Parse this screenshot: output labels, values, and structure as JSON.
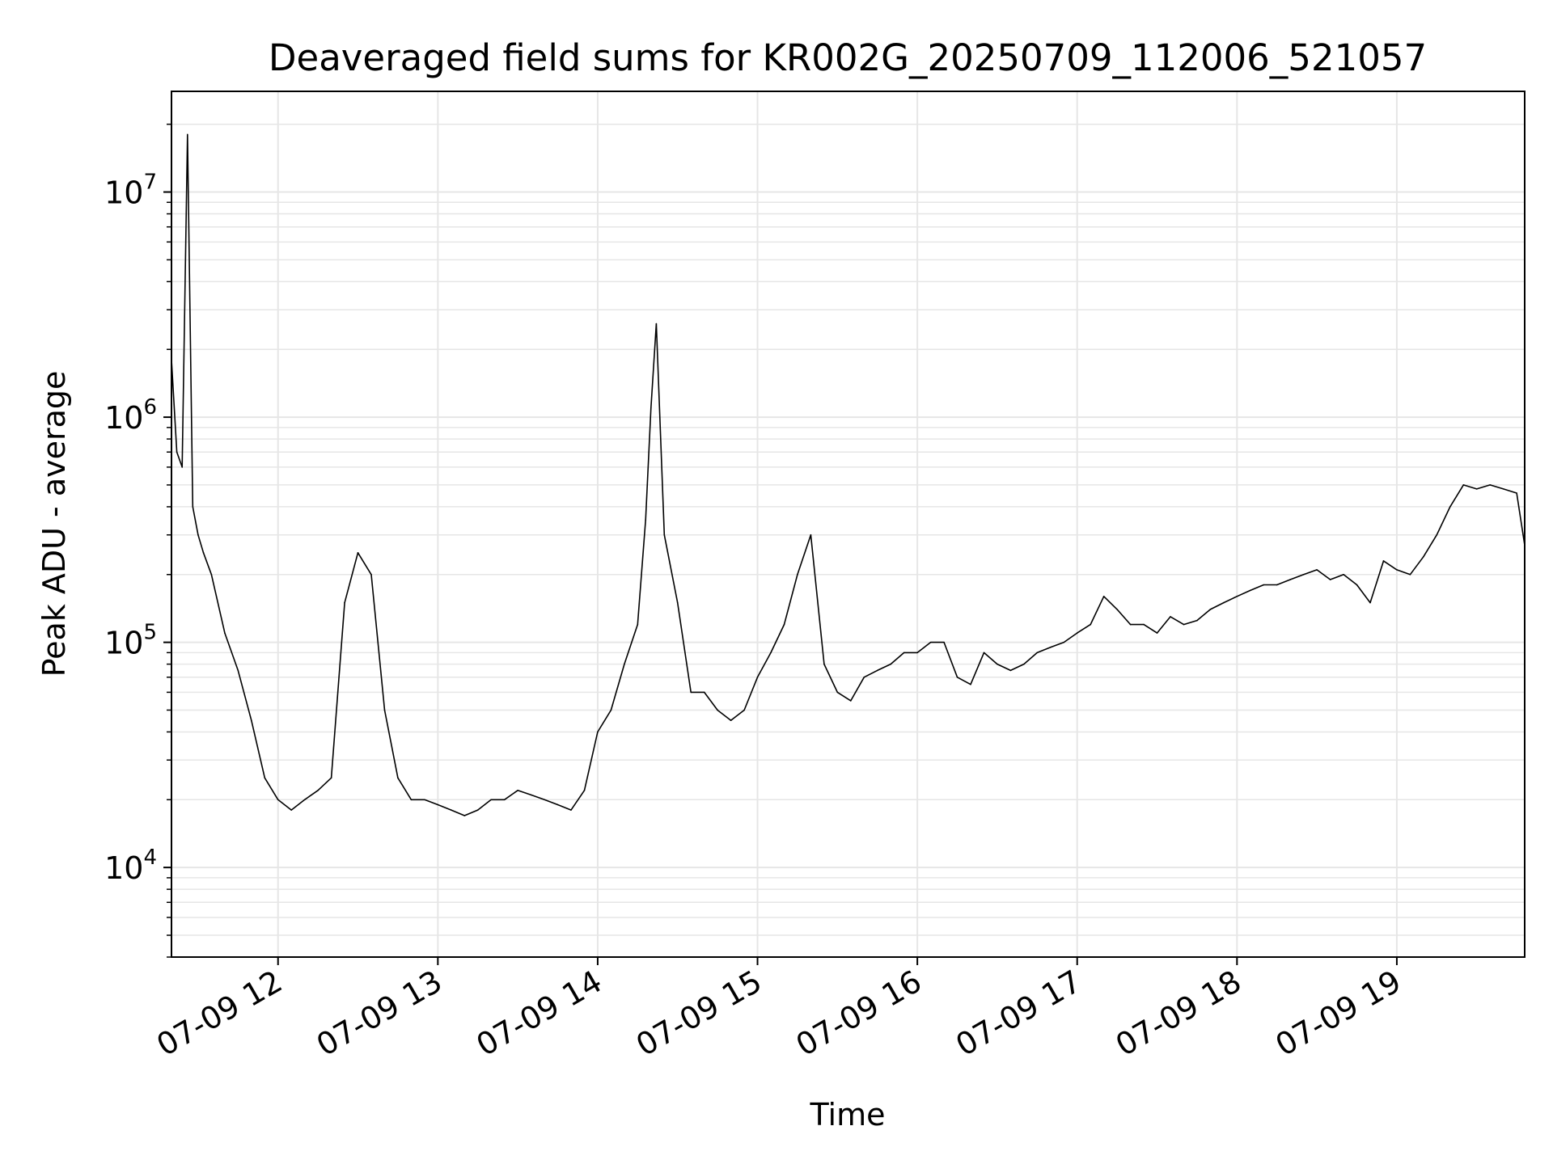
{
  "chart_data": {
    "type": "line",
    "title": "Deaveraged field sums for KR002G_20250709_112006_521057",
    "xlabel": "Time",
    "ylabel": "Peak ADU - average",
    "x_range": [
      "2025-07-09 11:20",
      "2025-07-09 19:48"
    ],
    "x_ticks": [
      "07-09 12",
      "07-09 13",
      "07-09 14",
      "07-09 15",
      "07-09 16",
      "07-09 17",
      "07-09 18",
      "07-09 19"
    ],
    "y_scale": "log",
    "y_range": [
      4000,
      28000000
    ],
    "y_ticks": [
      {
        "value": 10000,
        "base": "10",
        "exp": "4"
      },
      {
        "value": 100000,
        "base": "10",
        "exp": "5"
      },
      {
        "value": 1000000,
        "base": "10",
        "exp": "6"
      },
      {
        "value": 10000000,
        "base": "10",
        "exp": "7"
      }
    ],
    "grid": true,
    "line_color": "#000000",
    "grid_color": "#e6e6e6",
    "series": [
      {
        "x": [
          "11:20",
          "11:22",
          "11:24",
          "11:26",
          "11:28",
          "11:30",
          "11:32",
          "11:35",
          "11:40",
          "11:45",
          "11:50",
          "11:55",
          "12:00",
          "12:05",
          "12:10",
          "12:15",
          "12:20",
          "12:25",
          "12:30",
          "12:35",
          "12:40",
          "12:45",
          "12:50",
          "12:55",
          "13:00",
          "13:05",
          "13:10",
          "13:15",
          "13:20",
          "13:25",
          "13:30",
          "13:35",
          "13:40",
          "13:45",
          "13:50",
          "13:55",
          "14:00",
          "14:05",
          "14:10",
          "14:15",
          "14:18",
          "14:20",
          "14:22",
          "14:25",
          "14:30",
          "14:35",
          "14:40",
          "14:45",
          "14:50",
          "14:55",
          "15:00",
          "15:05",
          "15:10",
          "15:15",
          "15:20",
          "15:25",
          "15:30",
          "15:35",
          "15:40",
          "15:45",
          "15:50",
          "15:55",
          "16:00",
          "16:05",
          "16:10",
          "16:15",
          "16:20",
          "16:25",
          "16:30",
          "16:35",
          "16:40",
          "16:45",
          "16:50",
          "16:55",
          "17:00",
          "17:05",
          "17:10",
          "17:15",
          "17:20",
          "17:25",
          "17:30",
          "17:35",
          "17:40",
          "17:45",
          "17:50",
          "17:55",
          "18:00",
          "18:05",
          "18:10",
          "18:15",
          "18:20",
          "18:25",
          "18:30",
          "18:35",
          "18:40",
          "18:45",
          "18:50",
          "18:55",
          "19:00",
          "19:05",
          "19:10",
          "19:15",
          "19:20",
          "19:25",
          "19:30",
          "19:35",
          "19:40",
          "19:45",
          "19:48"
        ],
        "y": [
          1800000,
          700000,
          600000,
          18000000,
          400000,
          300000,
          250000,
          200000,
          110000,
          75000,
          45000,
          25000,
          20000,
          18000,
          20000,
          22000,
          25000,
          150000,
          250000,
          200000,
          50000,
          25000,
          20000,
          20000,
          19000,
          18000,
          17000,
          18000,
          20000,
          20000,
          22000,
          21000,
          20000,
          19000,
          18000,
          22000,
          40000,
          50000,
          80000,
          120000,
          350000,
          1100000,
          2600000,
          300000,
          150000,
          60000,
          60000,
          50000,
          45000,
          50000,
          70000,
          90000,
          120000,
          200000,
          300000,
          80000,
          60000,
          55000,
          70000,
          75000,
          80000,
          90000,
          90000,
          100000,
          100000,
          70000,
          65000,
          90000,
          80000,
          75000,
          80000,
          90000,
          95000,
          100000,
          110000,
          120000,
          160000,
          140000,
          120000,
          120000,
          110000,
          130000,
          120000,
          125000,
          140000,
          150000,
          160000,
          170000,
          180000,
          180000,
          190000,
          200000,
          210000,
          190000,
          200000,
          180000,
          150000,
          230000,
          210000,
          200000,
          240000,
          300000,
          400000,
          500000,
          480000,
          500000,
          480000,
          460000,
          270000
        ]
      }
    ]
  }
}
